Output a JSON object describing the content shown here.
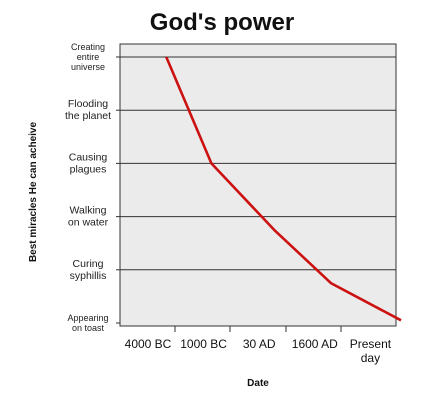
{
  "chart_data": {
    "type": "line",
    "title": "God's power",
    "xlabel": "Date",
    "ylabel": "Best miracles He can acheive",
    "categories": [
      "4000 BC",
      "1000 BC",
      "30 AD",
      "1600 AD",
      "Present day"
    ],
    "y_levels": [
      "Creating entire universe",
      "Flooding the planet",
      "Causing plagues",
      "Walking on water",
      "Curing syphillis",
      "Appearing on toast"
    ],
    "series": [
      {
        "color": "#cc1111",
        "points": [
          {
            "x": 0.33,
            "y": 5.0
          },
          {
            "x": 1.14,
            "y": 3.0
          },
          {
            "x": 2.27,
            "y": 1.75
          },
          {
            "x": 3.29,
            "y": 0.75
          },
          {
            "x": 4.55,
            "y": 0.05
          }
        ]
      }
    ],
    "ylim": [
      0,
      5
    ],
    "grid": "horizontal",
    "background": "#ebebeb"
  }
}
